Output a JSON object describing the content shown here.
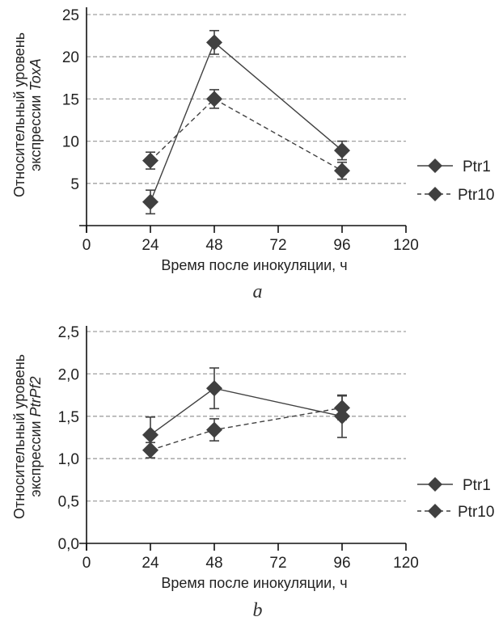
{
  "chart_data": [
    {
      "type": "line",
      "panel_label": "a",
      "title": "",
      "xlabel": "Время после инокуляции, ч",
      "ylabel_line1": "Относительный уровень",
      "ylabel_line2_prefix": "экспрессии ",
      "ylabel_gene": "ToxA",
      "xlim": [
        0,
        120
      ],
      "ylim": [
        0,
        25
      ],
      "xticks": [
        0,
        24,
        48,
        72,
        96,
        120
      ],
      "xtick_labels": [
        "0",
        "24",
        "48",
        "72",
        "96",
        "120"
      ],
      "yticks": [
        5,
        10,
        15,
        20,
        25
      ],
      "ytick_labels": [
        "5",
        "10",
        "15",
        "20",
        "25"
      ],
      "grid": "horizontal dashed",
      "legend_position": "right",
      "series": [
        {
          "name": "Ptr1",
          "line_style": "solid",
          "marker": "diamond",
          "x": [
            24,
            48,
            96
          ],
          "y": [
            2.8,
            21.7,
            8.9
          ],
          "error": [
            1.4,
            1.4,
            1.1
          ]
        },
        {
          "name": "Ptr10",
          "line_style": "dashed",
          "marker": "diamond",
          "x": [
            24,
            48,
            96
          ],
          "y": [
            7.7,
            15.0,
            6.5
          ],
          "error": [
            1.0,
            1.1,
            1.0
          ]
        }
      ]
    },
    {
      "type": "line",
      "panel_label": "b",
      "title": "",
      "xlabel": "Время после инокуляции, ч",
      "ylabel_line1": "Относительный уровень",
      "ylabel_line2_prefix": "экспрессии ",
      "ylabel_gene": "PtrPf2",
      "xlim": [
        0,
        120
      ],
      "ylim": [
        0,
        2.5
      ],
      "xticks": [
        0,
        24,
        48,
        72,
        96,
        120
      ],
      "xtick_labels": [
        "0",
        "24",
        "48",
        "72",
        "96",
        "120"
      ],
      "yticks": [
        0,
        0.5,
        1.0,
        1.5,
        2.0,
        2.5
      ],
      "ytick_labels": [
        "0,0",
        "0,5",
        "1,0",
        "1,5",
        "2,0",
        "2,5"
      ],
      "grid": "horizontal dashed",
      "legend_position": "right",
      "series": [
        {
          "name": "Ptr1",
          "line_style": "solid",
          "marker": "diamond",
          "x": [
            24,
            48,
            96
          ],
          "y": [
            1.28,
            1.83,
            1.5
          ],
          "error": [
            0.21,
            0.24,
            0.25
          ]
        },
        {
          "name": "Ptr10",
          "line_style": "dashed",
          "marker": "diamond",
          "x": [
            24,
            48,
            96
          ],
          "y": [
            1.1,
            1.34,
            1.6
          ],
          "error": [
            0.09,
            0.13,
            0.14
          ]
        }
      ]
    }
  ],
  "colors": {
    "series": "#404040",
    "grid": "#a0a0a0",
    "axis": "#111111"
  }
}
